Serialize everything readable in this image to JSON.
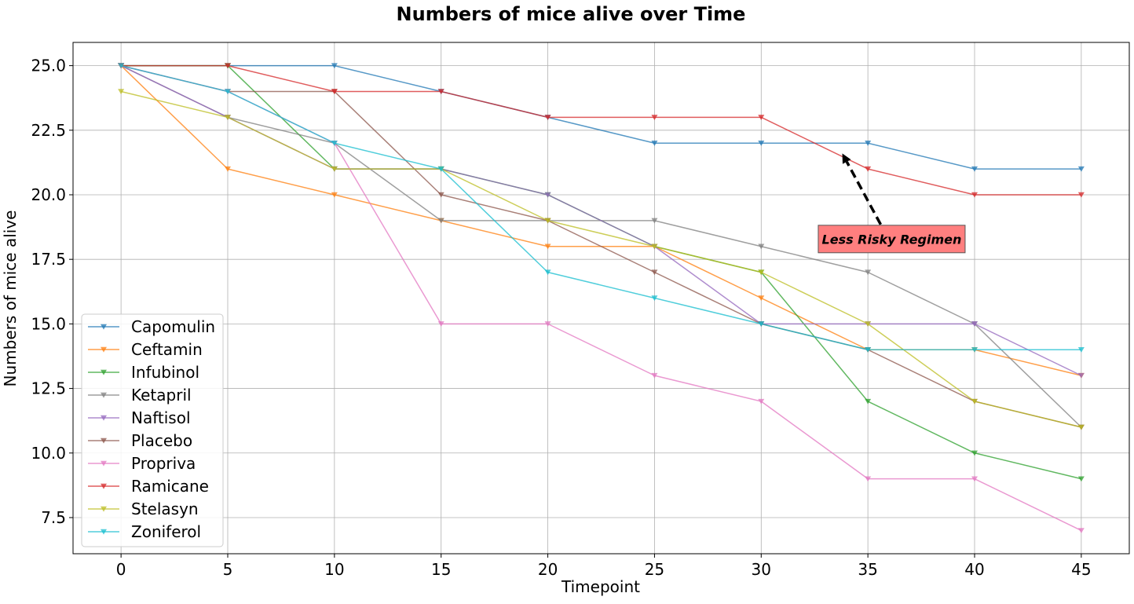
{
  "chart_data": {
    "type": "line",
    "title": "Numbers of mice alive over Time",
    "xlabel": "Timepoint",
    "ylabel": "Numbers of mice alive",
    "x": [
      0,
      5,
      10,
      15,
      20,
      25,
      30,
      35,
      40,
      45
    ],
    "xlim": [
      -2.25,
      47.25
    ],
    "ylim": [
      6.1,
      25.9
    ],
    "xticks": [
      0,
      5,
      10,
      15,
      20,
      25,
      30,
      35,
      40,
      45
    ],
    "yticks": [
      7.5,
      10.0,
      12.5,
      15.0,
      17.5,
      20.0,
      22.5,
      25.0
    ],
    "grid": true,
    "legend_position": "lower-left",
    "marker": "triangle-down",
    "series": [
      {
        "name": "Capomulin",
        "color": "#1f77b4",
        "values": [
          25,
          25,
          25,
          24,
          23,
          22,
          22,
          22,
          21,
          21
        ]
      },
      {
        "name": "Ceftamin",
        "color": "#ff7f0e",
        "values": [
          25,
          21,
          20,
          19,
          18,
          18,
          16,
          14,
          14,
          13
        ]
      },
      {
        "name": "Infubinol",
        "color": "#2ca02c",
        "values": [
          25,
          25,
          21,
          21,
          20,
          18,
          17,
          12,
          10,
          9
        ]
      },
      {
        "name": "Ketapril",
        "color": "#7f7f7f",
        "values": [
          25,
          23,
          22,
          19,
          19,
          19,
          18,
          17,
          15,
          11
        ]
      },
      {
        "name": "Naftisol",
        "color": "#9467bd",
        "values": [
          25,
          23,
          21,
          21,
          20,
          18,
          15,
          15,
          15,
          13
        ]
      },
      {
        "name": "Placebo",
        "color": "#8c564b",
        "values": [
          25,
          24,
          24,
          20,
          19,
          17,
          15,
          14,
          12,
          11
        ]
      },
      {
        "name": "Propriva",
        "color": "#e377c2",
        "values": [
          25,
          24,
          22,
          15,
          15,
          13,
          12,
          9,
          9,
          7
        ]
      },
      {
        "name": "Ramicane",
        "color": "#d62728",
        "values": [
          25,
          25,
          24,
          24,
          23,
          23,
          23,
          21,
          20,
          20
        ]
      },
      {
        "name": "Stelasyn",
        "color": "#bcbd22",
        "values": [
          24,
          23,
          21,
          21,
          19,
          18,
          17,
          15,
          12,
          11
        ]
      },
      {
        "name": "Zoniferol",
        "color": "#17becf",
        "values": [
          25,
          24,
          22,
          21,
          17,
          16,
          15,
          14,
          14,
          14
        ]
      }
    ],
    "annotation": {
      "text": "Less Risky Regimen",
      "box_color": "#ff7f7f",
      "arrow_from": [
        35.6,
        18.85
      ],
      "arrow_to": [
        33.8,
        21.6
      ]
    }
  }
}
